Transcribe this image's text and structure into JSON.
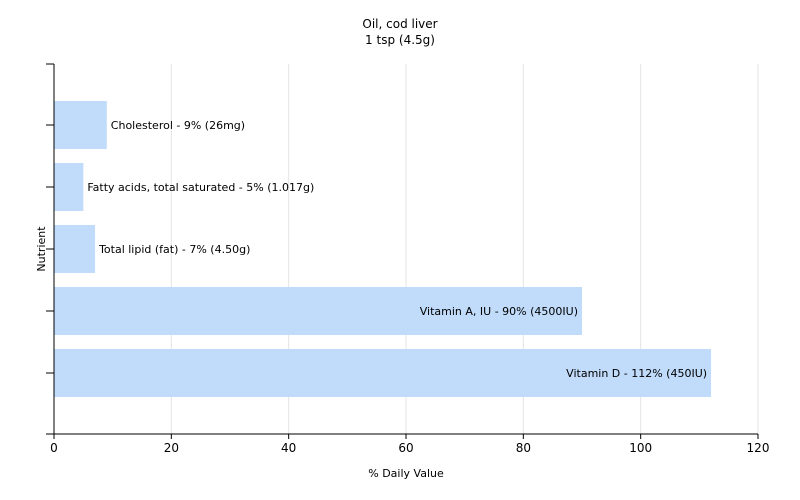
{
  "chart_data": {
    "type": "bar",
    "orientation": "horizontal",
    "title": "Oil, cod liver",
    "subtitle": "1 tsp (4.5g)",
    "xlabel": "% Daily Value",
    "ylabel": "Nutrient",
    "xlim": [
      0,
      120
    ],
    "xticks": [
      "0",
      "20",
      "40",
      "60",
      "80",
      "100",
      "120"
    ],
    "grid": true,
    "legend": "none",
    "bar_color": "#c0dcfa",
    "categories": [
      "Cholesterol",
      "Fatty acids, total saturated",
      "Total lipid (fat)",
      "Vitamin A, IU",
      "Vitamin D"
    ],
    "values": [
      9,
      5,
      7,
      90,
      112
    ],
    "labels": [
      "Cholesterol - 9% (26mg)",
      "Fatty acids, total saturated - 5% (1.017g)",
      "Total lipid (fat) - 7% (4.50g)",
      "Vitamin A, IU - 90% (4500IU)",
      "Vitamin D - 112% (450IU)"
    ]
  }
}
